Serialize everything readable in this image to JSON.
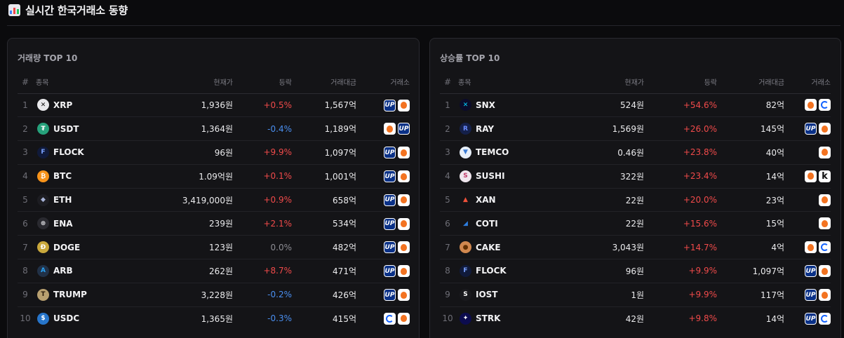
{
  "header": {
    "title": "실시간 한국거래소 동향"
  },
  "columns": {
    "rank": "#",
    "name": "종목",
    "price": "현재가",
    "change": "등락",
    "volume": "거래대금",
    "exchange": "거래소"
  },
  "volume_top": {
    "title": "거래량 TOP 10",
    "rows": [
      {
        "rank": "1",
        "symbol": "XRP",
        "price": "1,936원",
        "change": "+0.5%",
        "dir": "up",
        "volume": "1,567억",
        "icon": {
          "name": "xrp-icon",
          "glyph": "✕",
          "bg": "#e9e9ec",
          "fg": "#111111"
        },
        "exchanges": [
          "upbit",
          "bithumb"
        ]
      },
      {
        "rank": "2",
        "symbol": "USDT",
        "price": "1,364원",
        "change": "-0.4%",
        "dir": "down",
        "volume": "1,189억",
        "icon": {
          "name": "usdt-icon",
          "glyph": "₮",
          "bg": "#26a17b",
          "fg": "#ffffff"
        },
        "exchanges": [
          "bithumb",
          "upbit"
        ]
      },
      {
        "rank": "3",
        "symbol": "FLOCK",
        "price": "96원",
        "change": "+9.9%",
        "dir": "up",
        "volume": "1,097억",
        "icon": {
          "name": "flock-icon",
          "glyph": "F",
          "bg": "#101a3a",
          "fg": "#7aa2ff"
        },
        "exchanges": [
          "upbit",
          "bithumb"
        ]
      },
      {
        "rank": "4",
        "symbol": "BTC",
        "price": "1.09억원",
        "change": "+0.1%",
        "dir": "up",
        "volume": "1,001억",
        "icon": {
          "name": "btc-icon",
          "glyph": "₿",
          "bg": "#f7931a",
          "fg": "#ffffff"
        },
        "exchanges": [
          "upbit",
          "bithumb"
        ]
      },
      {
        "rank": "5",
        "symbol": "ETH",
        "price": "3,419,000원",
        "change": "+0.9%",
        "dir": "up",
        "volume": "658억",
        "icon": {
          "name": "eth-icon",
          "glyph": "◆",
          "bg": "#1d1d22",
          "fg": "#a8b4d8"
        },
        "exchanges": [
          "upbit",
          "bithumb"
        ]
      },
      {
        "rank": "6",
        "symbol": "ENA",
        "price": "239원",
        "change": "+2.1%",
        "dir": "up",
        "volume": "534억",
        "icon": {
          "name": "ena-icon",
          "glyph": "⊛",
          "bg": "#2a2a30",
          "fg": "#e0e0e4"
        },
        "exchanges": [
          "upbit",
          "bithumb"
        ]
      },
      {
        "rank": "7",
        "symbol": "DOGE",
        "price": "123원",
        "change": "0.0%",
        "dir": "flat",
        "volume": "482억",
        "icon": {
          "name": "doge-icon",
          "glyph": "Ð",
          "bg": "#c9a83c",
          "fg": "#ffffff"
        },
        "exchanges": [
          "upbit",
          "bithumb"
        ]
      },
      {
        "rank": "8",
        "symbol": "ARB",
        "price": "262원",
        "change": "+8.7%",
        "dir": "up",
        "volume": "471억",
        "icon": {
          "name": "arb-icon",
          "glyph": "A",
          "bg": "#213147",
          "fg": "#28a0f0"
        },
        "exchanges": [
          "upbit",
          "bithumb"
        ]
      },
      {
        "rank": "9",
        "symbol": "TRUMP",
        "price": "3,228원",
        "change": "-0.2%",
        "dir": "down",
        "volume": "426억",
        "icon": {
          "name": "trump-icon",
          "glyph": "T",
          "bg": "#b8a070",
          "fg": "#2a1c0c"
        },
        "exchanges": [
          "upbit",
          "bithumb"
        ]
      },
      {
        "rank": "10",
        "symbol": "USDC",
        "price": "1,365원",
        "change": "-0.3%",
        "dir": "down",
        "volume": "415억",
        "icon": {
          "name": "usdc-icon",
          "glyph": "$",
          "bg": "#2775ca",
          "fg": "#ffffff"
        },
        "exchanges": [
          "coinone",
          "bithumb"
        ]
      }
    ]
  },
  "gainers_top": {
    "title": "상승률 TOP 10",
    "rows": [
      {
        "rank": "1",
        "symbol": "SNX",
        "price": "524원",
        "change": "+54.6%",
        "dir": "up",
        "volume": "82억",
        "icon": {
          "name": "snx-icon",
          "glyph": "✕",
          "bg": "#0b0b2a",
          "fg": "#00d1ff"
        },
        "exchanges": [
          "bithumb",
          "coinone"
        ]
      },
      {
        "rank": "2",
        "symbol": "RAY",
        "price": "1,569원",
        "change": "+26.0%",
        "dir": "up",
        "volume": "145억",
        "icon": {
          "name": "ray-icon",
          "glyph": "R",
          "bg": "#14204a",
          "fg": "#6a8bff"
        },
        "exchanges": [
          "upbit",
          "bithumb"
        ]
      },
      {
        "rank": "3",
        "symbol": "TEMCO",
        "price": "0.46원",
        "change": "+23.8%",
        "dir": "up",
        "volume": "40억",
        "icon": {
          "name": "temco-icon",
          "glyph": "▼",
          "bg": "#e6eef8",
          "fg": "#3a7bd5"
        },
        "exchanges": [
          "bithumb"
        ]
      },
      {
        "rank": "4",
        "symbol": "SUSHI",
        "price": "322원",
        "change": "+23.4%",
        "dir": "up",
        "volume": "14억",
        "icon": {
          "name": "sushi-icon",
          "glyph": "S",
          "bg": "#f0e6ee",
          "fg": "#c23a6a"
        },
        "exchanges": [
          "bithumb",
          "korbit"
        ]
      },
      {
        "rank": "5",
        "symbol": "XAN",
        "price": "22원",
        "change": "+20.0%",
        "dir": "up",
        "volume": "23억",
        "icon": {
          "name": "xan-icon",
          "glyph": "▲",
          "bg": "#141417",
          "fg": "#f0513a"
        },
        "exchanges": [
          "bithumb"
        ]
      },
      {
        "rank": "6",
        "symbol": "COTI",
        "price": "22원",
        "change": "+15.6%",
        "dir": "up",
        "volume": "15억",
        "icon": {
          "name": "coti-icon",
          "glyph": "◢",
          "bg": "#141417",
          "fg": "#2d7de0"
        },
        "exchanges": [
          "bithumb"
        ]
      },
      {
        "rank": "7",
        "symbol": "CAKE",
        "price": "3,043원",
        "change": "+14.7%",
        "dir": "up",
        "volume": "4억",
        "icon": {
          "name": "cake-icon",
          "glyph": "●",
          "bg": "#d1884f",
          "fg": "#633001"
        },
        "exchanges": [
          "bithumb",
          "coinone"
        ]
      },
      {
        "rank": "8",
        "symbol": "FLOCK",
        "price": "96원",
        "change": "+9.9%",
        "dir": "up",
        "volume": "1,097억",
        "icon": {
          "name": "flock-icon",
          "glyph": "F",
          "bg": "#101a3a",
          "fg": "#7aa2ff"
        },
        "exchanges": [
          "upbit",
          "bithumb"
        ]
      },
      {
        "rank": "9",
        "symbol": "IOST",
        "price": "1원",
        "change": "+9.9%",
        "dir": "up",
        "volume": "117억",
        "icon": {
          "name": "iost-icon",
          "glyph": "S",
          "bg": "#1a1a1e",
          "fg": "#ffffff"
        },
        "exchanges": [
          "upbit",
          "bithumb"
        ]
      },
      {
        "rank": "10",
        "symbol": "STRK",
        "price": "42원",
        "change": "+9.8%",
        "dir": "up",
        "volume": "14억",
        "icon": {
          "name": "strk-icon",
          "glyph": "✦",
          "bg": "#0c0c4f",
          "fg": "#ffffff"
        },
        "exchanges": [
          "upbit",
          "coinone"
        ]
      }
    ]
  },
  "exchange_badges": {
    "upbit": {
      "glyph": "UP",
      "color": "#0a3187"
    },
    "bithumb": {
      "color": "#f37321"
    },
    "coinone": {
      "color": "#1463ff"
    },
    "korbit": {
      "glyph": "k",
      "color": "#111111"
    }
  },
  "colors": {
    "up": "#f04a4a",
    "down": "#4a8ff0",
    "flat": "#8d8d94"
  }
}
